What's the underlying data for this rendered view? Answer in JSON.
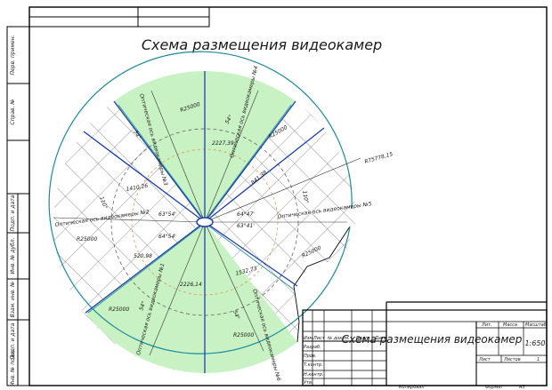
{
  "title": "Схема размещения видеокамер",
  "sidebar": {
    "labels": [
      "Перв. примен.",
      "Справ. №",
      "Подп. и дата",
      "Инв. № дубл.",
      "Взам. инв. №",
      "Подп. и дата",
      "Инв. № подл."
    ]
  },
  "diagram": {
    "radius_labels": [
      "R25000",
      "R25000",
      "R25000",
      "R25000",
      "R25000",
      "R25000"
    ],
    "outer_radius_label": "R75778,15",
    "dimensions": [
      "2227,39",
      "1410,26",
      "520,98",
      "2226,14",
      "1532,73",
      "841,38"
    ],
    "angles": [
      "63°54'",
      "64°54'",
      "64°47'",
      "63°41'",
      "54°",
      "54°",
      "54°",
      "54°",
      "110°",
      "110°"
    ],
    "axis_labels": [
      "Оптическая ось видеокамеры №2",
      "Оптическая ось видеокамеры №3",
      "Оптическая ось видеокамеры №4",
      "Оптическая ось видеокамеры №5",
      "Оптическая ось видеокамеры №1",
      "Оптическая ось видеокамеры №6"
    ]
  },
  "title_block": {
    "title": "Схема размещения видеокамер",
    "col_headers": [
      "Изм.",
      "Лист",
      "№ докум.",
      "Подп.",
      "Дата"
    ],
    "row_labels": [
      "Разраб.",
      "Пров.",
      "Т.контр.",
      "",
      "Н.контр.",
      "Утв."
    ],
    "lit_label": "Лит.",
    "mass_label": "Масса",
    "scale_label": "Масштаб",
    "scale_value": "1:650",
    "sheet_label": "Лист",
    "sheets_label": "Листов",
    "sheets_value": "1"
  },
  "footer": {
    "copied": "Копировал",
    "format_label": "Формат",
    "format_value": "А3"
  }
}
